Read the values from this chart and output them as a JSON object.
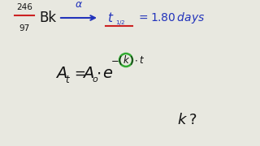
{
  "bg_color": "#e8e8e0",
  "underline_color": "#cc2222",
  "blue": "#2233bb",
  "dark": "#111111",
  "green": "#33aa33",
  "figsize": [
    3.2,
    1.8
  ],
  "dpi": 100
}
